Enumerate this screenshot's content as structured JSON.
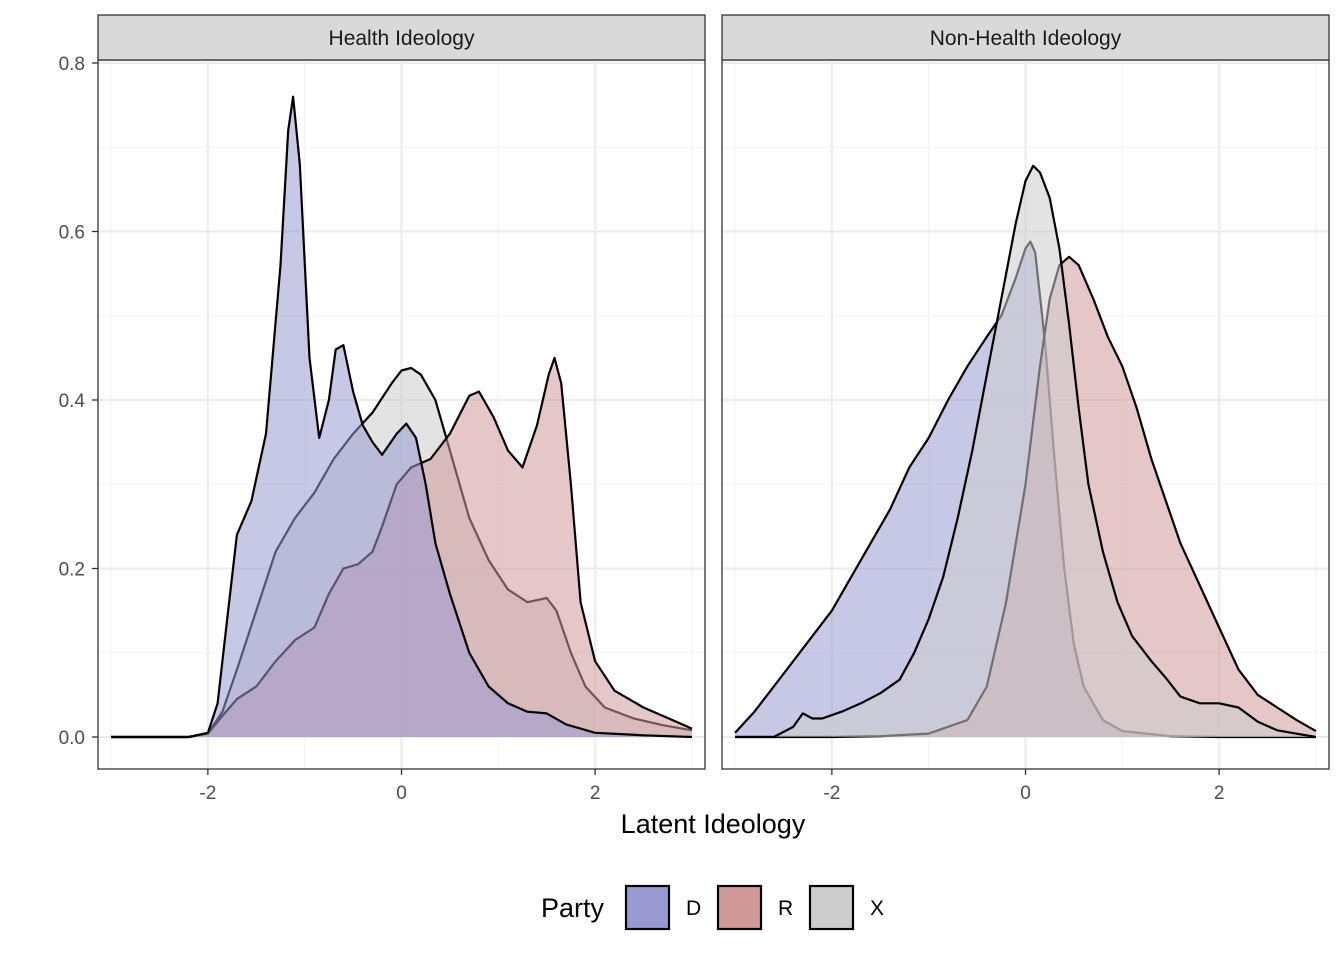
{
  "chart_data": {
    "type": "area",
    "subtype": "density",
    "xlabel": "Latent Ideology",
    "ylabel": "",
    "xlim": [
      -3,
      3
    ],
    "ylim": [
      0,
      0.8
    ],
    "x_ticks": [
      -2,
      0,
      2
    ],
    "y_ticks": [
      0.0,
      0.2,
      0.4,
      0.6,
      0.8
    ],
    "x_tick_labels": [
      "-2",
      "0",
      "2"
    ],
    "y_tick_labels": [
      "0.0",
      "0.2",
      "0.4",
      "0.6",
      "0.8"
    ],
    "grid": true,
    "legend": {
      "title": "Party",
      "position": "bottom",
      "entries": [
        {
          "key": "D",
          "label": "D",
          "color": "#9999d2"
        },
        {
          "key": "R",
          "label": "R",
          "color": "#d29999"
        },
        {
          "key": "X",
          "label": "X",
          "color": "#cccccc"
        }
      ]
    },
    "panels": [
      {
        "title": "Health Ideology",
        "series": [
          {
            "name": "X",
            "points": [
              [
                -3.0,
                0.0
              ],
              [
                -2.2,
                0.0
              ],
              [
                -2.0,
                0.004
              ],
              [
                -1.85,
                0.03
              ],
              [
                -1.7,
                0.08
              ],
              [
                -1.5,
                0.15
              ],
              [
                -1.3,
                0.22
              ],
              [
                -1.1,
                0.26
              ],
              [
                -0.9,
                0.29
              ],
              [
                -0.7,
                0.33
              ],
              [
                -0.5,
                0.36
              ],
              [
                -0.3,
                0.385
              ],
              [
                -0.1,
                0.42
              ],
              [
                0.0,
                0.435
              ],
              [
                0.1,
                0.438
              ],
              [
                0.2,
                0.43
              ],
              [
                0.35,
                0.4
              ],
              [
                0.5,
                0.34
              ],
              [
                0.7,
                0.26
              ],
              [
                0.9,
                0.21
              ],
              [
                1.1,
                0.175
              ],
              [
                1.3,
                0.16
              ],
              [
                1.5,
                0.165
              ],
              [
                1.6,
                0.15
              ],
              [
                1.75,
                0.1
              ],
              [
                1.9,
                0.06
              ],
              [
                2.1,
                0.035
              ],
              [
                2.4,
                0.022
              ],
              [
                2.7,
                0.014
              ],
              [
                3.0,
                0.008
              ]
            ]
          },
          {
            "name": "R",
            "points": [
              [
                -3.0,
                0.0
              ],
              [
                -2.2,
                0.0
              ],
              [
                -2.0,
                0.004
              ],
              [
                -1.85,
                0.025
              ],
              [
                -1.7,
                0.045
              ],
              [
                -1.5,
                0.06
              ],
              [
                -1.3,
                0.09
              ],
              [
                -1.1,
                0.115
              ],
              [
                -0.9,
                0.13
              ],
              [
                -0.75,
                0.17
              ],
              [
                -0.6,
                0.2
              ],
              [
                -0.45,
                0.205
              ],
              [
                -0.3,
                0.22
              ],
              [
                -0.2,
                0.25
              ],
              [
                -0.05,
                0.3
              ],
              [
                0.1,
                0.32
              ],
              [
                0.3,
                0.33
              ],
              [
                0.5,
                0.36
              ],
              [
                0.7,
                0.405
              ],
              [
                0.8,
                0.41
              ],
              [
                0.95,
                0.38
              ],
              [
                1.1,
                0.34
              ],
              [
                1.25,
                0.32
              ],
              [
                1.4,
                0.37
              ],
              [
                1.52,
                0.43
              ],
              [
                1.58,
                0.45
              ],
              [
                1.65,
                0.42
              ],
              [
                1.75,
                0.3
              ],
              [
                1.85,
                0.16
              ],
              [
                2.0,
                0.09
              ],
              [
                2.2,
                0.055
              ],
              [
                2.5,
                0.035
              ],
              [
                2.8,
                0.02
              ],
              [
                3.0,
                0.01
              ]
            ]
          },
          {
            "name": "D",
            "points": [
              [
                -3.0,
                0.0
              ],
              [
                -2.2,
                0.0
              ],
              [
                -2.0,
                0.005
              ],
              [
                -1.9,
                0.04
              ],
              [
                -1.8,
                0.14
              ],
              [
                -1.7,
                0.24
              ],
              [
                -1.55,
                0.28
              ],
              [
                -1.4,
                0.36
              ],
              [
                -1.25,
                0.56
              ],
              [
                -1.17,
                0.72
              ],
              [
                -1.12,
                0.76
              ],
              [
                -1.05,
                0.68
              ],
              [
                -0.95,
                0.45
              ],
              [
                -0.85,
                0.355
              ],
              [
                -0.75,
                0.4
              ],
              [
                -0.68,
                0.46
              ],
              [
                -0.6,
                0.465
              ],
              [
                -0.5,
                0.41
              ],
              [
                -0.4,
                0.37
              ],
              [
                -0.3,
                0.35
              ],
              [
                -0.2,
                0.335
              ],
              [
                -0.05,
                0.36
              ],
              [
                0.05,
                0.372
              ],
              [
                0.15,
                0.355
              ],
              [
                0.25,
                0.3
              ],
              [
                0.35,
                0.23
              ],
              [
                0.5,
                0.17
              ],
              [
                0.7,
                0.1
              ],
              [
                0.9,
                0.06
              ],
              [
                1.1,
                0.04
              ],
              [
                1.3,
                0.03
              ],
              [
                1.5,
                0.028
              ],
              [
                1.7,
                0.015
              ],
              [
                2.0,
                0.005
              ],
              [
                2.5,
                0.002
              ],
              [
                3.0,
                0.0
              ]
            ]
          }
        ]
      },
      {
        "title": "Non-Health Ideology",
        "series": [
          {
            "name": "D",
            "points": [
              [
                -3.0,
                0.005
              ],
              [
                -2.8,
                0.03
              ],
              [
                -2.6,
                0.06
              ],
              [
                -2.4,
                0.09
              ],
              [
                -2.2,
                0.12
              ],
              [
                -2.0,
                0.15
              ],
              [
                -1.8,
                0.19
              ],
              [
                -1.6,
                0.23
              ],
              [
                -1.4,
                0.27
              ],
              [
                -1.2,
                0.32
              ],
              [
                -1.0,
                0.355
              ],
              [
                -0.8,
                0.4
              ],
              [
                -0.6,
                0.44
              ],
              [
                -0.4,
                0.475
              ],
              [
                -0.25,
                0.5
              ],
              [
                -0.1,
                0.545
              ],
              [
                0.0,
                0.58
              ],
              [
                0.05,
                0.588
              ],
              [
                0.1,
                0.575
              ],
              [
                0.2,
                0.47
              ],
              [
                0.3,
                0.33
              ],
              [
                0.4,
                0.2
              ],
              [
                0.5,
                0.11
              ],
              [
                0.6,
                0.06
              ],
              [
                0.8,
                0.02
              ],
              [
                1.0,
                0.007
              ],
              [
                1.5,
                0.001
              ],
              [
                2.0,
                0.0
              ],
              [
                3.0,
                0.0
              ]
            ]
          },
          {
            "name": "R",
            "points": [
              [
                -3.0,
                0.0
              ],
              [
                -2.0,
                0.0
              ],
              [
                -1.5,
                0.001
              ],
              [
                -1.0,
                0.004
              ],
              [
                -0.6,
                0.02
              ],
              [
                -0.4,
                0.06
              ],
              [
                -0.2,
                0.16
              ],
              [
                0.0,
                0.3
              ],
              [
                0.15,
                0.44
              ],
              [
                0.25,
                0.52
              ],
              [
                0.35,
                0.56
              ],
              [
                0.45,
                0.57
              ],
              [
                0.55,
                0.56
              ],
              [
                0.7,
                0.52
              ],
              [
                0.85,
                0.475
              ],
              [
                1.0,
                0.44
              ],
              [
                1.15,
                0.39
              ],
              [
                1.3,
                0.33
              ],
              [
                1.45,
                0.28
              ],
              [
                1.6,
                0.23
              ],
              [
                1.8,
                0.18
              ],
              [
                2.0,
                0.13
              ],
              [
                2.2,
                0.08
              ],
              [
                2.4,
                0.05
              ],
              [
                2.6,
                0.035
              ],
              [
                2.8,
                0.02
              ],
              [
                3.0,
                0.007
              ]
            ]
          },
          {
            "name": "X",
            "points": [
              [
                -3.0,
                0.0
              ],
              [
                -2.6,
                0.0
              ],
              [
                -2.4,
                0.012
              ],
              [
                -2.3,
                0.028
              ],
              [
                -2.2,
                0.022
              ],
              [
                -2.1,
                0.022
              ],
              [
                -1.9,
                0.03
              ],
              [
                -1.7,
                0.04
              ],
              [
                -1.5,
                0.052
              ],
              [
                -1.3,
                0.068
              ],
              [
                -1.15,
                0.1
              ],
              [
                -1.0,
                0.14
              ],
              [
                -0.85,
                0.19
              ],
              [
                -0.7,
                0.26
              ],
              [
                -0.55,
                0.34
              ],
              [
                -0.4,
                0.43
              ],
              [
                -0.25,
                0.52
              ],
              [
                -0.1,
                0.61
              ],
              [
                0.0,
                0.66
              ],
              [
                0.08,
                0.678
              ],
              [
                0.15,
                0.67
              ],
              [
                0.25,
                0.64
              ],
              [
                0.35,
                0.58
              ],
              [
                0.45,
                0.49
              ],
              [
                0.55,
                0.39
              ],
              [
                0.65,
                0.3
              ],
              [
                0.8,
                0.22
              ],
              [
                0.95,
                0.16
              ],
              [
                1.1,
                0.12
              ],
              [
                1.3,
                0.09
              ],
              [
                1.45,
                0.07
              ],
              [
                1.6,
                0.048
              ],
              [
                1.8,
                0.04
              ],
              [
                2.0,
                0.04
              ],
              [
                2.2,
                0.035
              ],
              [
                2.4,
                0.018
              ],
              [
                2.6,
                0.008
              ],
              [
                3.0,
                0.0
              ]
            ]
          }
        ]
      }
    ]
  }
}
